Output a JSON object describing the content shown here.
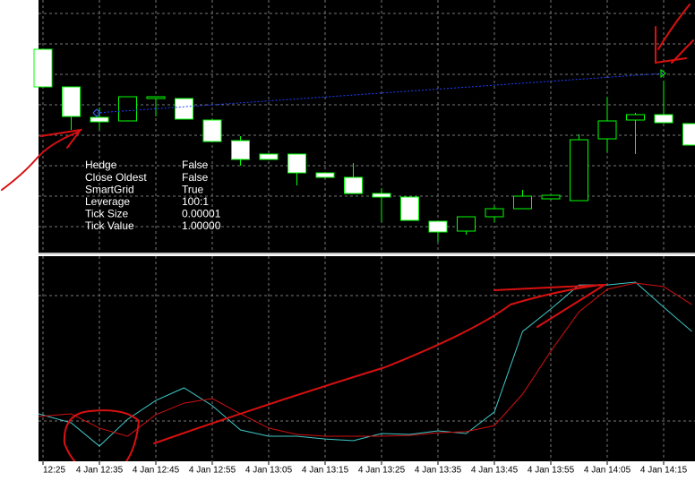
{
  "chart_data": [
    {
      "type": "candlestick",
      "categories": [
        "12:25",
        null,
        "4 Jan 12:35",
        null,
        "4 Jan 12:45",
        null,
        "4 Jan 12:55",
        null,
        "4 Jan 13:05",
        null,
        "4 Jan 13:15",
        null,
        "4 Jan 13:25",
        null,
        "4 Jan 13:35",
        null,
        "4 Jan 13:45",
        null,
        "4 Jan 13:55",
        null,
        "4 Jan 14:05",
        null,
        "4 Jan 14:15",
        null
      ],
      "open": [
        227,
        185,
        151,
        147,
        172,
        172,
        148,
        125,
        110,
        110,
        89,
        84,
        66,
        62,
        35,
        24,
        40,
        49,
        60,
        58,
        127,
        148,
        154,
        144
      ],
      "high": [
        227,
        185,
        162,
        174,
        174,
        172,
        148,
        130,
        110,
        110,
        89,
        100,
        72,
        62,
        35,
        40,
        52,
        70,
        64,
        132,
        174,
        156,
        192,
        144
      ],
      "low": [
        185,
        137,
        137,
        147,
        152,
        149,
        124,
        97,
        104,
        75,
        84,
        66,
        34,
        36,
        12,
        20,
        34,
        49,
        60,
        58,
        112,
        110,
        145,
        120
      ],
      "close": [
        185,
        152,
        146,
        174,
        174,
        149,
        124,
        104,
        104,
        89,
        84,
        66,
        62,
        36,
        23,
        40,
        49,
        63,
        64,
        126,
        147,
        154,
        145,
        120
      ],
      "ylim": [
        0,
        282
      ],
      "up_color": "#000000",
      "down_color": "#ffffff",
      "line_color": "#00ff00",
      "info": [
        [
          "Hedge",
          "False"
        ],
        [
          "Close Oldest",
          "False"
        ],
        [
          "SmartGrid",
          "True"
        ],
        [
          "Leverage",
          "100:1"
        ],
        [
          "Tick Size",
          "0.00001"
        ],
        [
          "Tick Value",
          "1.00000"
        ]
      ]
    },
    {
      "type": "line",
      "ylim": [
        0,
        100
      ],
      "series": [
        {
          "color": "#40c8c8",
          "values": [
            23.5,
            19.2,
            8.1,
            20.9,
            29.9,
            35.9,
            27.4,
            15.8,
            12.8,
            12.8,
            11.5,
            10.7,
            14.1,
            13.7,
            15.4,
            14.1,
            24.4,
            62.8,
            73.5,
            85.0,
            85.0,
            86.3,
            74.4,
            62.8
          ]
        },
        {
          "color": "#d01010",
          "values": [
            22.2,
            23.5,
            16.7,
            12.8,
            23.1,
            28.6,
            30.8,
            23.5,
            16.7,
            13.7,
            12.8,
            12.8,
            12.8,
            13.2,
            14.5,
            15.0,
            17.9,
            32.9,
            53.4,
            72.2,
            82.9,
            85.9,
            84.2,
            75.6
          ]
        }
      ]
    }
  ]
}
